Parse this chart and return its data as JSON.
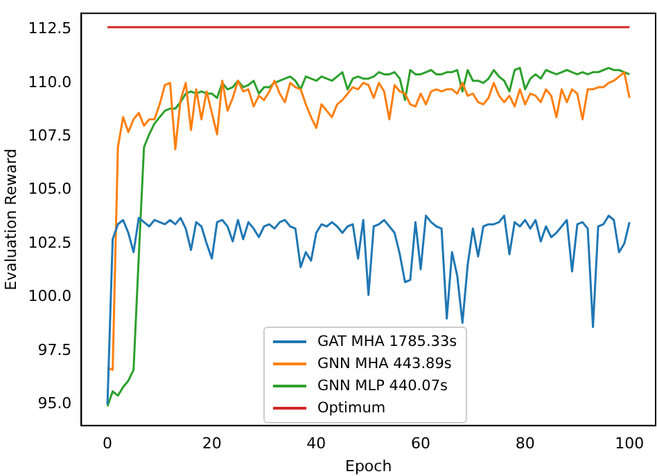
{
  "chart_data": {
    "type": "line",
    "xlabel": "Epoch",
    "ylabel": "Evaluation Reward",
    "xlim": [
      -5,
      105
    ],
    "xticks": [
      0,
      20,
      40,
      60,
      80,
      100
    ],
    "ylim": [
      94,
      113.25
    ],
    "yticks": [
      {
        "value": 95,
        "label": "95.0"
      },
      97.5,
      {
        "value": 100,
        "label": "100.0"
      },
      102.5,
      {
        "value": 105,
        "label": "105.0"
      },
      107.5,
      {
        "value": 110,
        "label": "110.0"
      },
      112.5
    ],
    "grid": false,
    "legend": "bottom",
    "marker": "none",
    "line_style": "solid",
    "x": [
      0,
      1,
      2,
      3,
      4,
      5,
      6,
      7,
      8,
      9,
      10,
      11,
      12,
      13,
      14,
      15,
      16,
      17,
      18,
      19,
      20,
      21,
      22,
      23,
      24,
      25,
      26,
      27,
      28,
      29,
      30,
      31,
      32,
      33,
      34,
      35,
      36,
      37,
      38,
      39,
      40,
      41,
      42,
      43,
      44,
      45,
      46,
      47,
      48,
      49,
      50,
      51,
      52,
      53,
      54,
      55,
      56,
      57,
      58,
      59,
      60,
      61,
      62,
      63,
      64,
      65,
      66,
      67,
      68,
      69,
      70,
      71,
      72,
      73,
      74,
      75,
      76,
      77,
      78,
      79,
      80,
      81,
      82,
      83,
      84,
      85,
      86,
      87,
      88,
      89,
      90,
      91,
      92,
      93,
      94,
      95,
      96,
      97,
      98,
      99,
      100
    ],
    "series": [
      {
        "name": "GAT MHA 1785.33s",
        "color": "#1f77b4",
        "values": [
          95.0,
          102.7,
          103.4,
          103.6,
          103.0,
          102.1,
          103.7,
          103.5,
          103.3,
          103.6,
          103.5,
          103.4,
          103.6,
          103.4,
          103.7,
          103.2,
          102.2,
          103.5,
          103.3,
          102.5,
          101.8,
          103.5,
          103.6,
          103.3,
          102.6,
          103.6,
          102.7,
          103.5,
          103.2,
          102.8,
          103.3,
          103.4,
          103.2,
          103.5,
          103.6,
          103.3,
          103.2,
          101.4,
          102.1,
          101.7,
          103.0,
          103.4,
          103.3,
          103.5,
          103.3,
          103.0,
          103.3,
          103.4,
          101.8,
          103.6,
          100.1,
          103.3,
          103.4,
          103.6,
          103.3,
          103.0,
          102.0,
          100.7,
          100.8,
          103.5,
          101.3,
          103.8,
          103.5,
          103.3,
          103.2,
          99.0,
          102.1,
          101.0,
          98.8,
          101.5,
          103.2,
          101.9,
          103.3,
          103.4,
          103.4,
          103.5,
          103.8,
          102.0,
          103.5,
          103.3,
          103.6,
          103.2,
          103.6,
          102.6,
          103.3,
          102.8,
          103.0,
          103.3,
          103.6,
          101.2,
          103.4,
          103.5,
          103.2,
          98.6,
          103.3,
          103.4,
          103.8,
          103.6,
          102.1,
          102.5,
          103.5
        ]
      },
      {
        "name": "GNN MHA 443.89s",
        "color": "#ff7f0e",
        "values": [
          96.7,
          96.6,
          107.0,
          108.4,
          107.7,
          108.3,
          108.6,
          108.0,
          108.3,
          108.3,
          109.0,
          109.9,
          110.0,
          106.9,
          109.2,
          110.0,
          107.8,
          109.7,
          108.3,
          109.6,
          108.6,
          107.6,
          110.1,
          108.7,
          109.3,
          110.1,
          109.6,
          109.7,
          108.9,
          109.4,
          109.2,
          109.6,
          110.1,
          109.5,
          109.1,
          110.0,
          109.8,
          109.7,
          109.0,
          108.4,
          107.9,
          109.0,
          108.7,
          108.4,
          109.0,
          109.2,
          109.5,
          109.8,
          109.7,
          110.0,
          109.9,
          109.3,
          110.0,
          109.6,
          108.3,
          109.9,
          109.6,
          109.5,
          109.0,
          108.9,
          109.5,
          109.0,
          109.6,
          109.7,
          109.6,
          109.7,
          109.7,
          109.5,
          110.0,
          109.4,
          109.5,
          109.1,
          109.0,
          109.3,
          110.0,
          109.4,
          109.1,
          109.4,
          108.9,
          109.7,
          109.0,
          109.5,
          109.4,
          109.1,
          109.7,
          109.4,
          108.4,
          109.7,
          109.1,
          109.7,
          109.5,
          108.3,
          109.7,
          109.7,
          109.8,
          109.8,
          110.0,
          110.1,
          110.3,
          110.5,
          109.3
        ]
      },
      {
        "name": "GNN MLP 440.07s",
        "color": "#2ca02c",
        "values": [
          94.9,
          95.6,
          95.4,
          95.8,
          96.1,
          96.6,
          101.9,
          107.0,
          107.6,
          108.1,
          108.4,
          108.7,
          108.8,
          108.8,
          109.1,
          109.5,
          109.6,
          109.5,
          109.6,
          109.5,
          109.5,
          109.3,
          110.0,
          109.7,
          109.8,
          110.1,
          109.8,
          109.9,
          110.1,
          109.5,
          109.8,
          109.8,
          110.0,
          110.1,
          110.2,
          110.3,
          110.1,
          109.7,
          110.3,
          110.2,
          110.1,
          110.3,
          110.2,
          110.1,
          110.3,
          110.5,
          109.7,
          110.2,
          110.3,
          110.2,
          110.2,
          110.3,
          110.5,
          110.4,
          110.4,
          110.5,
          110.2,
          109.2,
          110.6,
          110.4,
          110.4,
          110.5,
          110.6,
          110.4,
          110.4,
          110.5,
          110.5,
          110.6,
          109.6,
          110.6,
          110.1,
          110.1,
          110.0,
          110.2,
          110.6,
          110.3,
          110.1,
          109.6,
          110.6,
          110.7,
          109.7,
          110.2,
          110.4,
          110.2,
          110.6,
          110.5,
          110.4,
          110.5,
          110.6,
          110.5,
          110.4,
          110.5,
          110.4,
          110.5,
          110.5,
          110.6,
          110.7,
          110.6,
          110.6,
          110.5,
          110.4
        ]
      },
      {
        "name": "Optimum",
        "color": "#d62728",
        "x": [
          0,
          100
        ],
        "values": [
          112.6,
          112.6
        ]
      }
    ]
  }
}
